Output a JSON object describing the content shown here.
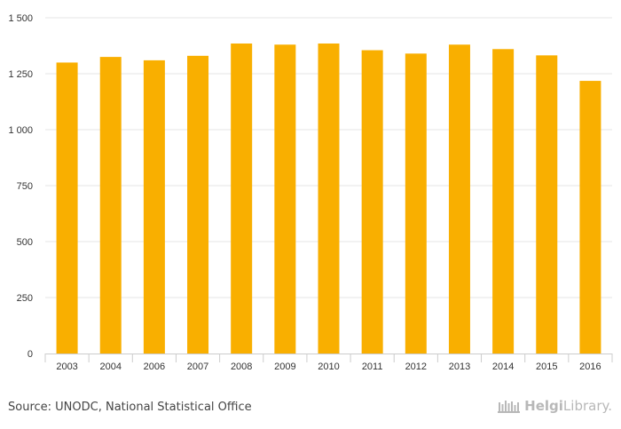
{
  "chart_data": {
    "type": "bar",
    "title": "",
    "xlabel": "",
    "ylabel": "",
    "categories": [
      "2003",
      "2004",
      "2006",
      "2007",
      "2008",
      "2009",
      "2010",
      "2011",
      "2012",
      "2013",
      "2014",
      "2015",
      "2016"
    ],
    "values": [
      1300,
      1325,
      1310,
      1330,
      1385,
      1380,
      1385,
      1355,
      1340,
      1380,
      1360,
      1332,
      1218
    ],
    "ylim": [
      0,
      1500
    ],
    "yticks": [
      0,
      250,
      500,
      750,
      1000,
      1250,
      1500
    ],
    "ytick_labels": [
      "0",
      "250",
      "500",
      "750",
      "1 000",
      "1 250",
      "1 500"
    ],
    "grid": true,
    "bar_color": "#F9AF00"
  },
  "footer": {
    "source": "Source: UNODC, National Statistical Office",
    "brand_part1": "Helgi",
    "brand_part2": "Library."
  },
  "colors": {
    "grid": "#e6e6e6",
    "axis": "#cccccc",
    "tick_text": "#333333"
  }
}
